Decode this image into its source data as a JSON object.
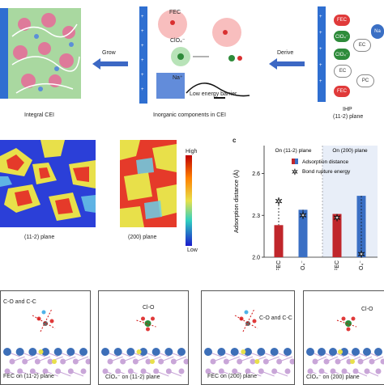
{
  "top": {
    "integral_cei_label": "Integral CEI",
    "grow_label": "Grow",
    "derive_label": "Derive",
    "inorganic_label": "Inorganic components in CEI",
    "ihp_label": "IHP",
    "ihp_plane": "(11-2) plane",
    "fec_label": "FEC",
    "clo4_label": "ClO₄⁻",
    "na_label": "Na⁺",
    "barrier_label": "Low energy barrier",
    "ihp_molecules": [
      "FEC",
      "ClO₄⁻",
      "EC",
      "ClO₄⁻",
      "EC",
      "PC",
      "FEC",
      "Na"
    ]
  },
  "middle": {
    "map_a_label": "(11-2) plane",
    "map_b_label": "(200) plane",
    "colorbar_high": "High",
    "colorbar_low": "Low",
    "panel_letter": "c"
  },
  "chart_data": {
    "type": "bar",
    "ylabel": "Adsorption distance (Å)",
    "ylim": [
      2.0,
      2.8
    ],
    "yticks": [
      2.0,
      2.3,
      2.6
    ],
    "groups": [
      "On (11-2) plane",
      "On (200) plane"
    ],
    "categories": [
      "FEC",
      "ClO₄⁻",
      "FEC",
      "ClO₄⁻"
    ],
    "series": [
      {
        "name": "Adsorption distance",
        "values": [
          2.23,
          2.34,
          2.31,
          2.44
        ]
      },
      {
        "name": "Bond rupture energy",
        "values": [
          2.4,
          2.3,
          2.28,
          2.02
        ]
      }
    ],
    "colors": [
      "#c0262b",
      "#3a6fc4"
    ],
    "legend": [
      "Adsorption distance",
      "Bond rupture energy"
    ]
  },
  "bottom": {
    "panels": [
      {
        "annotation": "C-O and C-C",
        "caption": "FEC on (11-2) plane"
      },
      {
        "annotation": "Cl-O",
        "caption": "ClO₄⁻ on (11-2) plane"
      },
      {
        "annotation": "C-O and C-C",
        "caption": "FEC on (200) plane"
      },
      {
        "annotation": "Cl-O",
        "caption": "ClO₄⁻ on (200) plane"
      }
    ]
  }
}
